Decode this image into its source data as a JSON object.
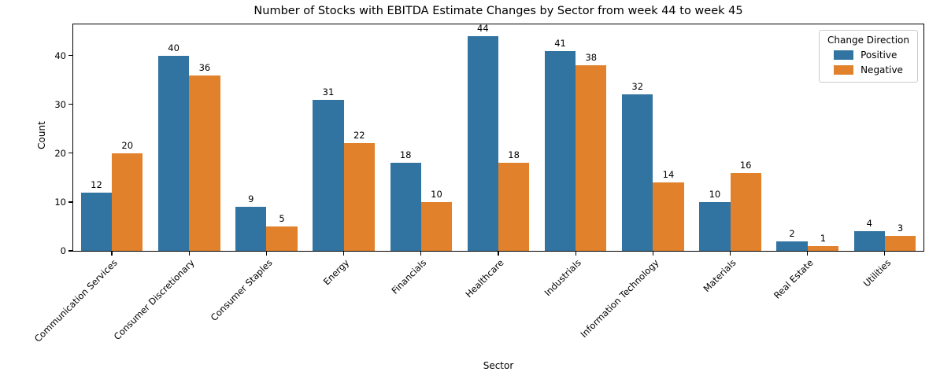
{
  "chart_data": {
    "type": "bar",
    "title": "Number of Stocks with EBITDA Estimate Changes by Sector from week 44 to week 45",
    "xlabel": "Sector",
    "ylabel": "Count",
    "categories": [
      "Communication Services",
      "Consumer Discretionary",
      "Consumer Staples",
      "Energy",
      "Financials",
      "Healthcare",
      "Industrials",
      "Information Technology",
      "Materials",
      "Real Estate",
      "Utilities"
    ],
    "series": [
      {
        "name": "Positive",
        "color": "#3274a1",
        "values": [
          12,
          40,
          9,
          31,
          18,
          44,
          41,
          32,
          10,
          2,
          4
        ]
      },
      {
        "name": "Negative",
        "color": "#e1812c",
        "values": [
          20,
          36,
          5,
          22,
          10,
          18,
          38,
          14,
          16,
          1,
          3
        ]
      }
    ],
    "bar_value_labels": true,
    "yticks": [
      0,
      10,
      20,
      30,
      40
    ],
    "ylim": [
      0,
      46.4
    ],
    "grid": false,
    "x_tick_rotation_deg": 45,
    "legend": {
      "title": "Change Direction",
      "position": "upper-right"
    },
    "colors": {
      "positive": "#3274a1",
      "negative": "#e1812c",
      "spine": "#000000",
      "background": "#ffffff"
    }
  }
}
